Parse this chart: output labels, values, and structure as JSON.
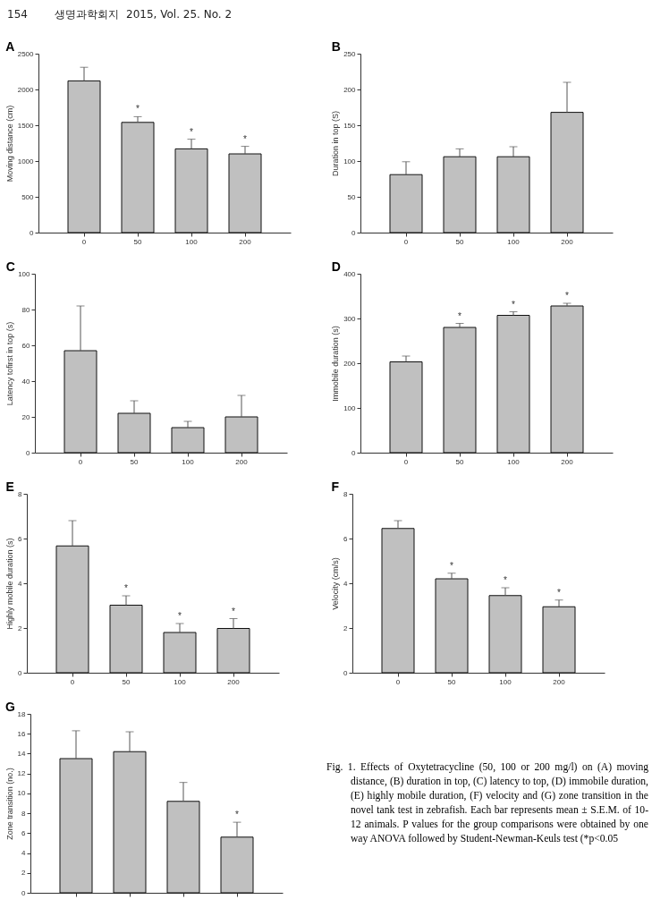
{
  "chart_data": [
    {
      "type": "bar",
      "title": "A",
      "ylabel": "Moving distance (cm)",
      "categories": [
        "0",
        "50",
        "100",
        "200"
      ],
      "values": [
        2120,
        1540,
        1170,
        1100
      ],
      "errors": [
        [
          2120,
          2310
        ],
        [
          1540,
          1620
        ],
        [
          1170,
          1305
        ],
        [
          1100,
          1205
        ]
      ],
      "color": "#c0c0c0",
      "ylim": [
        0,
        2500
      ],
      "yticks": [
        0,
        500,
        1000,
        1500,
        2000,
        2500
      ],
      "annotations": [
        "154        생명과학회지  2015, Vol. 25. No. 2",
        {
          "text": "*",
          "x": "50",
          "y": 1620
        },
        {
          "text": "*",
          "x": "100",
          "y": 1305
        },
        {
          "text": "*",
          "x": "200",
          "y": 1205
        }
      ]
    },
    {
      "type": "bar",
      "title": "B",
      "ylabel": "Duration in top (S)",
      "categories": [
        "0",
        "50",
        "100",
        "200"
      ],
      "values": [
        81,
        106,
        106,
        168
      ],
      "errors": [
        [
          81,
          99
        ],
        [
          106,
          117
        ],
        [
          106,
          120
        ],
        [
          168,
          210
        ]
      ],
      "color": "#c0c0c0",
      "ylim": [
        0,
        250
      ],
      "yticks": [
        0,
        50,
        100,
        150,
        200,
        250
      ]
    },
    {
      "type": "bar",
      "title": "C",
      "ylabel": "Latency tofirst in top (s)",
      "categories": [
        "0",
        "50",
        "100",
        "200"
      ],
      "values": [
        57,
        22,
        14,
        20
      ],
      "errors": [
        [
          57,
          82
        ],
        [
          22,
          29
        ],
        [
          14,
          17.5
        ],
        [
          20,
          32
        ]
      ],
      "color": "#c0c0c0",
      "ylim": [
        0,
        100
      ],
      "yticks": [
        0,
        20,
        40,
        60,
        80,
        100
      ]
    },
    {
      "type": "bar",
      "title": "D",
      "ylabel": "Immobile duration (s)",
      "categories": [
        "0",
        "50",
        "100",
        "200"
      ],
      "values": [
        203,
        280,
        307,
        328
      ],
      "errors": [
        [
          203,
          216
        ],
        [
          280,
          289
        ],
        [
          307,
          315
        ],
        [
          328,
          334
        ]
      ],
      "color": "#c0c0c0",
      "ylim": [
        0,
        400
      ],
      "yticks": [
        0,
        100,
        200,
        300,
        400
      ],
      "annotations": [
        {
          "text": "*",
          "x": "50",
          "y": 289
        },
        {
          "text": "*",
          "x": "100",
          "y": 315
        },
        {
          "text": "*",
          "x": "200",
          "y": 334
        }
      ]
    },
    {
      "type": "bar",
      "title": "E",
      "ylabel": "Highly mobile duration (s)",
      "categories": [
        "0",
        "50",
        "100",
        "200"
      ],
      "values": [
        5.67,
        3.02,
        1.8,
        1.98
      ],
      "errors": [
        [
          5.67,
          6.8
        ],
        [
          3.02,
          3.44
        ],
        [
          1.8,
          2.2
        ],
        [
          1.98,
          2.42
        ]
      ],
      "color": "#c0c0c0",
      "ylim": [
        0,
        8
      ],
      "yticks": [
        0,
        2,
        4,
        6,
        8
      ],
      "annotations": [
        {
          "text": "*",
          "x": "50",
          "y": 3.44
        },
        {
          "text": "*",
          "x": "100",
          "y": 2.2
        },
        {
          "text": "*",
          "x": "200",
          "y": 2.42
        }
      ]
    },
    {
      "type": "bar",
      "title": "F",
      "ylabel": "Velocity (cm/s)",
      "categories": [
        "0",
        "50",
        "100",
        "200"
      ],
      "values": [
        6.45,
        4.2,
        3.45,
        2.95
      ],
      "errors": [
        [
          6.45,
          6.8
        ],
        [
          4.2,
          4.45
        ],
        [
          3.45,
          3.8
        ],
        [
          2.95,
          3.25
        ]
      ],
      "color": "#c0c0c0",
      "ylim": [
        0,
        8
      ],
      "yticks": [
        0,
        2,
        4,
        6,
        8
      ],
      "annotations": [
        {
          "text": "*",
          "x": "50",
          "y": 4.45
        },
        {
          "text": "*",
          "x": "100",
          "y": 3.8
        },
        {
          "text": "*",
          "x": "200",
          "y": 3.25
        }
      ]
    },
    {
      "type": "bar",
      "title": "G",
      "ylabel": "Zone transition (no.)",
      "categories": [
        null,
        null,
        null,
        null
      ],
      "values": [
        13.5,
        14.2,
        9.2,
        5.6
      ],
      "errors": [
        [
          13.5,
          16.3
        ],
        [
          14.2,
          16.2
        ],
        [
          9.2,
          11.1
        ],
        [
          5.6,
          7.1
        ]
      ],
      "color": "#c0c0c0",
      "ylim": [
        0,
        18
      ],
      "yticks": [
        0,
        2,
        4,
        6,
        8,
        10,
        12,
        14,
        16,
        18
      ],
      "annotations": [
        {
          "text": "*",
          "y": 7.1
        },
        "Fig. 1. Effects of Oxytetracycline (50, 100 or 200 mg/l) on (A) moving distance, (B) duration in top, (C)  latency to top, (D) immobile duration, (E) highly mobile duration, (F) velocity and (G) zone transition in the novel tank test in zebrafish. Each bar represents mean ± S.E.M. of 10-12 animals. P values for the group comparisons were obtained by one way ANOVA followed by Student-Newman-Keuls test (*p<0.05"
      ]
    }
  ]
}
